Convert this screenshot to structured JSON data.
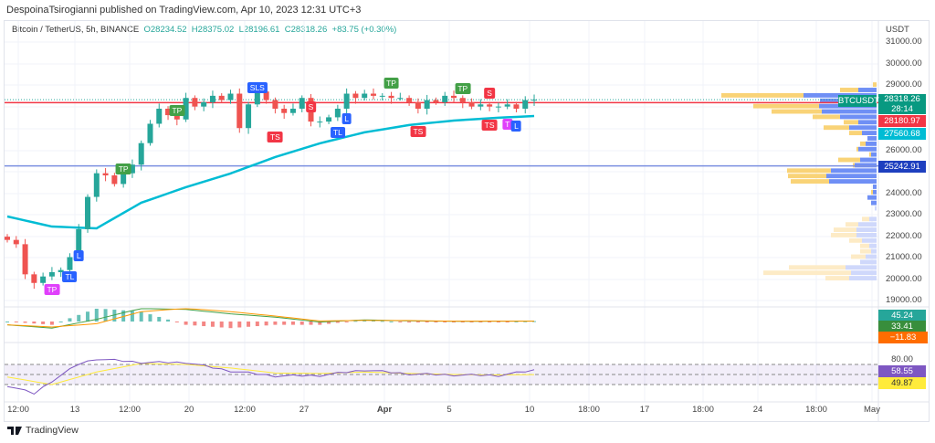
{
  "publisher_line": "DespoinaTsirogianni published on TradingView.com, Apr 10, 2023 12:31 UTC+3",
  "legend": {
    "symbol": "Bitcoin / TetherUS, 5h, BINANCE",
    "open": "O28234.52",
    "high": "H28375.02",
    "low": "L28196.61",
    "close": "C28318.26",
    "change": "+83.75 (+0.30%)"
  },
  "footer_logo": "TradingView",
  "colors": {
    "up": "#26a69a",
    "down": "#ef5350",
    "ema": "#00bcd4",
    "red_line": "#f23645",
    "blue_line": "#7b8fe0",
    "rsi": "#7e57c2",
    "rsi_ma": "#ffeb3b"
  },
  "chart_data": {
    "type": "candlestick",
    "currency": "USDT",
    "y_ticks": [
      "31000.00",
      "30000.00",
      "29000.00",
      "26000.00",
      "24000.00",
      "23000.00",
      "22000.00",
      "21000.00",
      "20000.00",
      "19000.00"
    ],
    "x_ticks": [
      "12:00",
      "13",
      "12:00",
      "20",
      "12:00",
      "27",
      "Apr",
      "5",
      "10",
      "18:00",
      "17",
      "18:00",
      "24",
      "18:00",
      "May"
    ],
    "ylim": [
      18700,
      31500
    ],
    "closes": [
      21800,
      21600,
      20200,
      19800,
      20100,
      20300,
      20400,
      21000,
      22300,
      23800,
      24900,
      24800,
      24400,
      24900,
      25300,
      26300,
      27200,
      27900,
      27600,
      27400,
      28400,
      28000,
      28200,
      28500,
      28300,
      28600,
      27000,
      28100,
      28700,
      28300,
      27900,
      27700,
      27900,
      28400,
      27300,
      27300,
      27500,
      27900,
      28600,
      28400,
      28600,
      28500,
      28500,
      28400,
      28400,
      28200,
      27900,
      28300,
      28200,
      28500,
      28400,
      28200,
      28000,
      28100,
      28000,
      28000,
      28100,
      27900,
      28300,
      28318.26
    ],
    "ema_knots": [
      [
        0,
        22890
      ],
      [
        5,
        22420
      ],
      [
        10,
        22340
      ],
      [
        15,
        23530
      ],
      [
        20,
        24250
      ],
      [
        25,
        24890
      ],
      [
        30,
        25650
      ],
      [
        35,
        26290
      ],
      [
        40,
        26800
      ],
      [
        45,
        27140
      ],
      [
        50,
        27350
      ],
      [
        55,
        27480
      ],
      [
        59,
        27560.68
      ]
    ],
    "horizontal_lines": [
      {
        "price": 28180.97,
        "color": "#f23645"
      },
      {
        "price": 25242.91,
        "color": "#7b8fe0"
      }
    ],
    "price_tags": [
      {
        "label": "BTCUSDT",
        "value": "28318.26",
        "sub": "28:14",
        "color": "#089981"
      },
      {
        "value": "28180.97",
        "color": "#f23645"
      },
      {
        "value": "27560.68",
        "color": "#00bcd4"
      },
      {
        "value": "25242.91",
        "color": "#1e3fbf"
      }
    ],
    "markers": [
      {
        "label": "TP",
        "color": "#e040fb",
        "bar": 5,
        "price": 19490
      },
      {
        "label": "TL",
        "color": "#2962ff",
        "bar": 7,
        "price": 20090
      },
      {
        "label": "L",
        "color": "#2962ff",
        "bar": 8,
        "price": 21060
      },
      {
        "label": "TP",
        "color": "#43a047",
        "bar": 13,
        "price": 25100
      },
      {
        "label": "TP",
        "color": "#43a047",
        "bar": 19,
        "price": 27815
      },
      {
        "label": "SLS",
        "color": "#2962ff",
        "bar": 28,
        "price": 28877
      },
      {
        "label": "TS",
        "color": "#f23645",
        "bar": 30,
        "price": 26584
      },
      {
        "label": "S",
        "color": "#f23645",
        "bar": 34,
        "price": 27985
      },
      {
        "label": "TL",
        "color": "#2962ff",
        "bar": 37,
        "price": 26796
      },
      {
        "label": "L",
        "color": "#2962ff",
        "bar": 38,
        "price": 27433
      },
      {
        "label": "TP",
        "color": "#43a047",
        "bar": 43,
        "price": 29089
      },
      {
        "label": "TS",
        "color": "#f23645",
        "bar": 46,
        "price": 26839
      },
      {
        "label": "TP",
        "color": "#43a047",
        "bar": 51,
        "price": 28834
      },
      {
        "label": "S",
        "color": "#f23645",
        "bar": 54,
        "price": 28622
      },
      {
        "label": "TS",
        "color": "#f23645",
        "bar": 54,
        "price": 27136
      },
      {
        "label": "T",
        "color": "#e040fb",
        "bar": 56,
        "price": 27178
      },
      {
        "label": "L",
        "color": "#2962ff",
        "bar": 57,
        "price": 27093
      }
    ],
    "volume_profile": [
      [
        29000,
        0,
        4
      ],
      [
        28750,
        20,
        20
      ],
      [
        28500,
        80,
        90
      ],
      [
        28250,
        62,
        0
      ],
      [
        28000,
        63,
        72
      ],
      [
        27750,
        60,
        55
      ],
      [
        27500,
        40,
        30
      ],
      [
        27250,
        20,
        16
      ],
      [
        27000,
        30,
        28
      ],
      [
        26750,
        16,
        14
      ],
      [
        26500,
        10,
        0
      ],
      [
        26250,
        12,
        6
      ],
      [
        26000,
        20,
        2
      ],
      [
        25750,
        6,
        2
      ],
      [
        25500,
        18,
        24
      ],
      [
        25250,
        24,
        2
      ],
      [
        25000,
        50,
        48
      ],
      [
        24750,
        55,
        42
      ],
      [
        24500,
        52,
        42
      ],
      [
        24250,
        4,
        0
      ],
      [
        24000,
        4,
        2
      ],
      [
        23750,
        10,
        0
      ],
      [
        23500,
        6,
        0
      ],
      [
        23250,
        2,
        0
      ],
      [
        22750,
        8,
        8
      ],
      [
        22500,
        20,
        14
      ],
      [
        22250,
        22,
        25
      ],
      [
        22000,
        22,
        28
      ],
      [
        21750,
        16,
        14
      ],
      [
        21500,
        8,
        10
      ],
      [
        21250,
        6,
        12
      ],
      [
        21000,
        12,
        16
      ],
      [
        20750,
        18,
        0
      ],
      [
        20500,
        34,
        62
      ],
      [
        20250,
        28,
        96
      ],
      [
        20000,
        30,
        26
      ]
    ],
    "value_area_low": 23400,
    "macd": {
      "values": [
        "45.24",
        "33.41",
        "−11.83"
      ],
      "colors": [
        "#26a69a",
        "#388e3c",
        "#ff6d00"
      ],
      "macd_knots": [
        [
          0,
          -300
        ],
        [
          5,
          -600
        ],
        [
          10,
          200
        ],
        [
          15,
          1200
        ],
        [
          20,
          1100
        ],
        [
          25,
          700
        ],
        [
          30,
          400
        ],
        [
          35,
          -50
        ],
        [
          40,
          150
        ],
        [
          45,
          60
        ],
        [
          50,
          20
        ],
        [
          55,
          30
        ],
        [
          59,
          45.24
        ]
      ],
      "signal_knots": [
        [
          0,
          -300
        ],
        [
          5,
          -500
        ],
        [
          10,
          -200
        ],
        [
          15,
          900
        ],
        [
          20,
          1200
        ],
        [
          25,
          900
        ],
        [
          30,
          500
        ],
        [
          35,
          50
        ],
        [
          40,
          100
        ],
        [
          45,
          90
        ],
        [
          50,
          30
        ],
        [
          55,
          35
        ],
        [
          59,
          33.41
        ]
      ]
    },
    "rsi": {
      "values": [
        "80.00",
        "58.55",
        "49.87"
      ],
      "bands": [
        70,
        50,
        30
      ],
      "rsi_knots": [
        [
          0,
          28
        ],
        [
          3,
          12
        ],
        [
          5,
          37
        ],
        [
          8,
          71
        ],
        [
          10,
          81
        ],
        [
          15,
          74
        ],
        [
          20,
          74
        ],
        [
          25,
          57
        ],
        [
          30,
          47
        ],
        [
          35,
          48
        ],
        [
          40,
          59
        ],
        [
          45,
          51
        ],
        [
          50,
          49
        ],
        [
          55,
          48
        ],
        [
          59,
          58.55
        ]
      ],
      "ma_knots": [
        [
          0,
          45
        ],
        [
          5,
          30
        ],
        [
          10,
          55
        ],
        [
          15,
          72
        ],
        [
          20,
          70
        ],
        [
          25,
          63
        ],
        [
          30,
          53
        ],
        [
          35,
          52
        ],
        [
          40,
          55
        ],
        [
          45,
          52
        ],
        [
          50,
          50
        ],
        [
          55,
          49
        ],
        [
          59,
          49.87
        ]
      ]
    }
  }
}
